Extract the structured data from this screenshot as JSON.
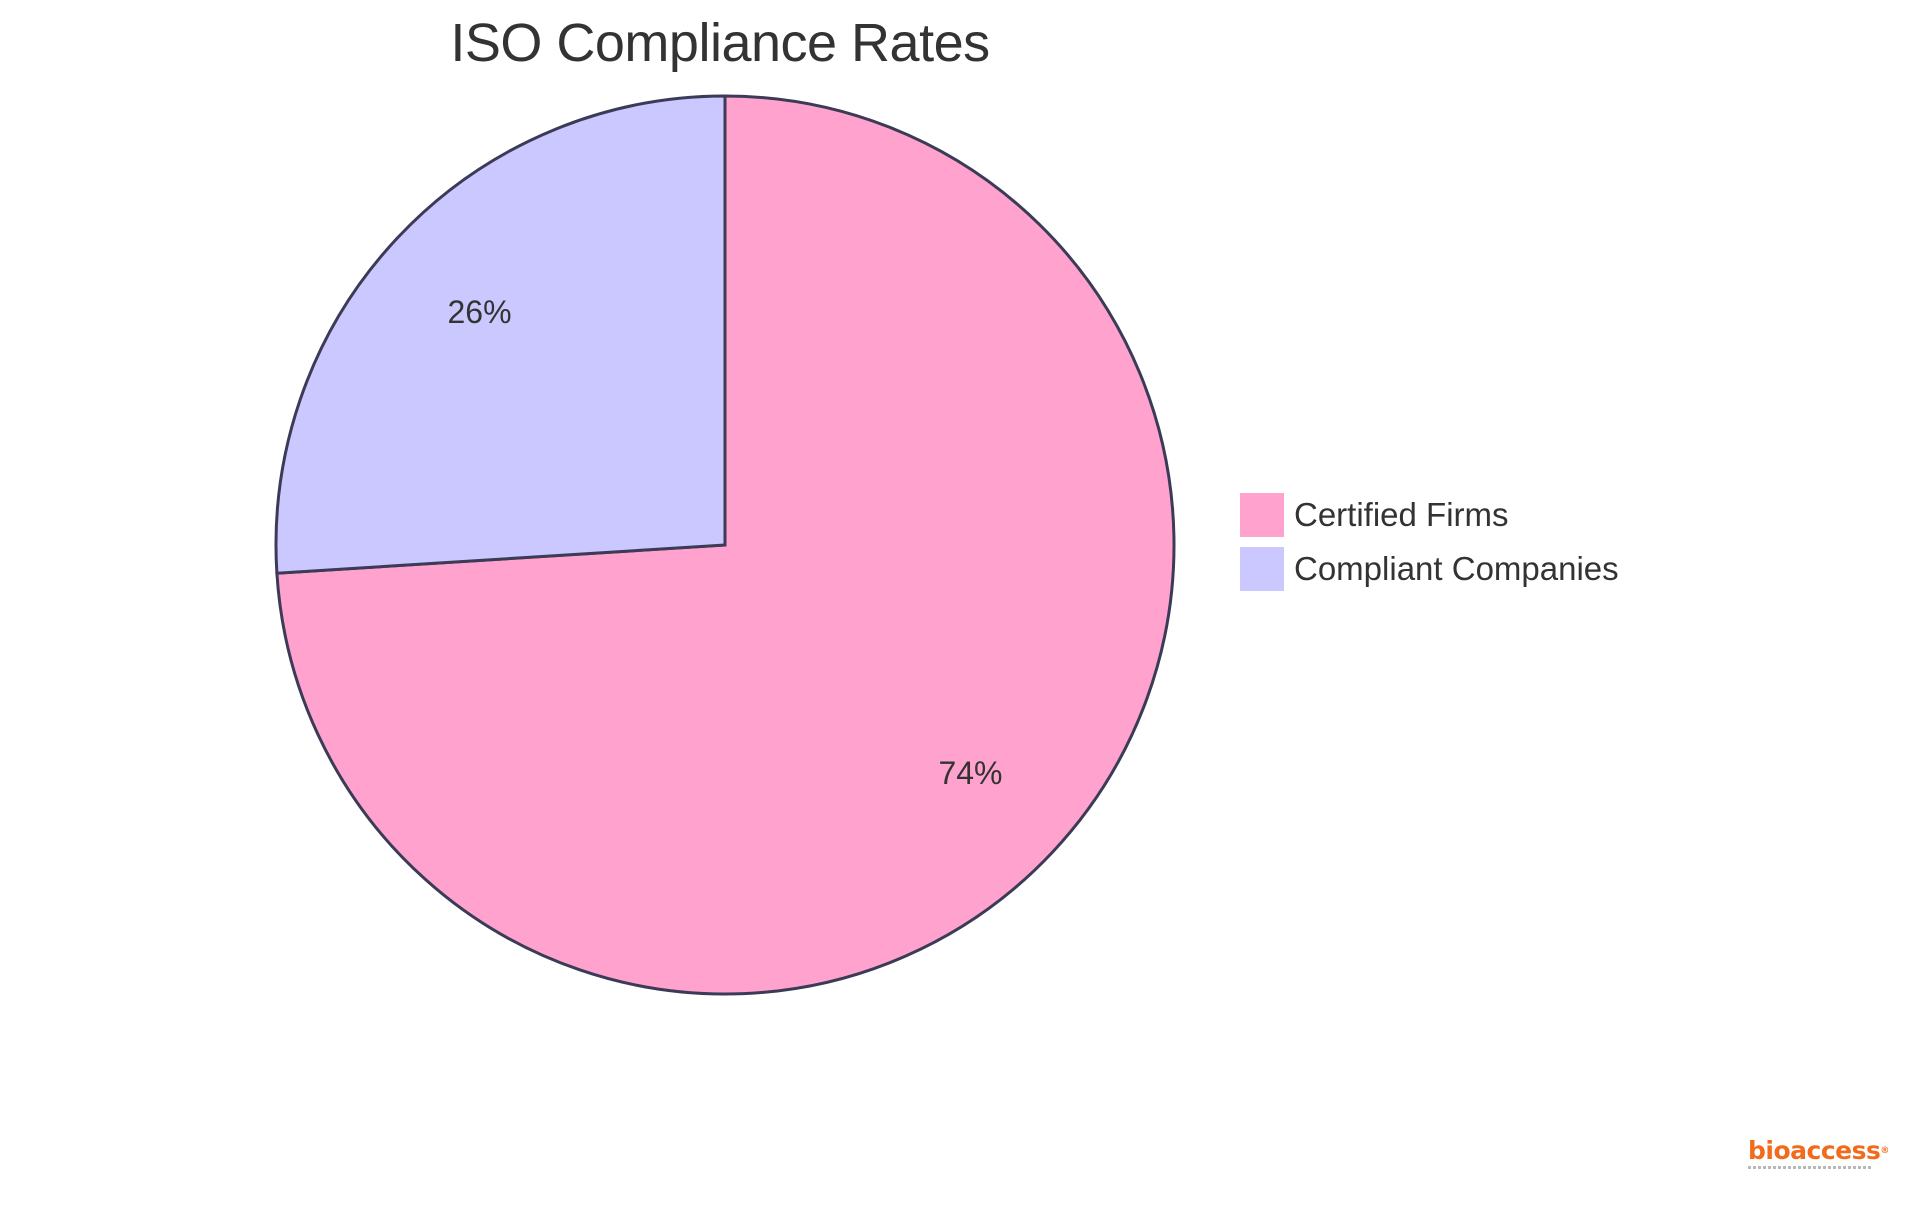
{
  "chart_data": {
    "type": "pie",
    "title": "ISO Compliance Rates",
    "slices": [
      {
        "label": "Certified Firms",
        "value": 74,
        "display": "74%",
        "color": "#FFA3CE"
      },
      {
        "label": "Compliant Companies",
        "value": 26,
        "display": "26%",
        "color": "#CBC8FF"
      }
    ],
    "start_angle_deg": 0,
    "direction": "clockwise",
    "legend_position": "right",
    "stroke_color": "#3C3B57"
  },
  "branding": {
    "logo_text": "bioaccess",
    "logo_color": "#F26B1D"
  }
}
